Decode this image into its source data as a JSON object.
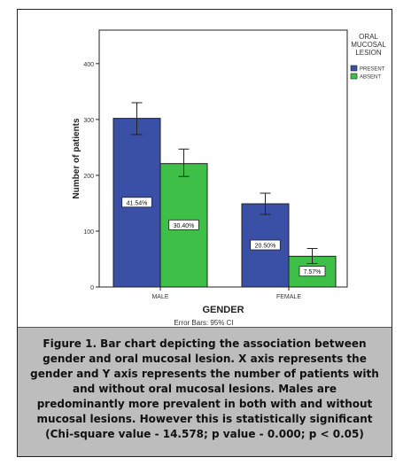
{
  "chart_data": {
    "type": "bar",
    "title": "",
    "xlabel": "GENDER",
    "ylabel": "Number of patients",
    "categories": [
      "MALE",
      "FEMALE"
    ],
    "ylim": [
      0,
      460
    ],
    "yticks": [
      0,
      100,
      200,
      300,
      400
    ],
    "legend": {
      "title_lines": [
        "ORAL",
        "MUCOSAL",
        "LESION"
      ],
      "placement": "top-right"
    },
    "series": [
      {
        "name": "PRESENT",
        "color": "#3a4fa6",
        "values": [
          302,
          149
        ],
        "error_low": [
          273,
          130
        ],
        "error_high": [
          330,
          168
        ],
        "data_labels": [
          "41.54%",
          "20.50%"
        ]
      },
      {
        "name": "ABSENT",
        "color": "#3dbf48",
        "values": [
          221,
          55
        ],
        "error_low": [
          198,
          42
        ],
        "error_high": [
          247,
          69
        ],
        "data_labels": [
          "30.40%",
          "7.57%"
        ]
      }
    ],
    "footnote": "Error Bars: 95% CI",
    "grid": false
  },
  "caption": "Figure 1. Bar chart depicting the association between gender and oral mucosal lesion. X axis represents the gender and Y axis represents the number of patients with and without oral mucosal lesions. Males are predominantly more prevalent in both with and without mucosal lesions. However this is statistically significant (Chi-square value - 14.578; p value - 0.000; p < 0.05)"
}
